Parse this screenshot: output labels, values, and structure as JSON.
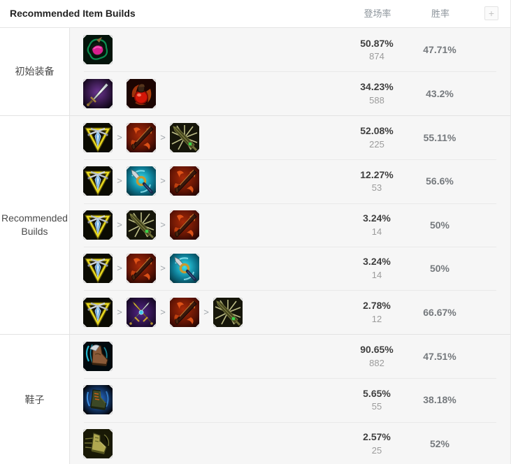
{
  "header": {
    "title": "Recommended Item Builds",
    "col_pick": "登场率",
    "col_win": "胜率",
    "add_button": "+"
  },
  "ui": {
    "arrow_glyph": ">"
  },
  "colors": {
    "header_text": "#222222",
    "column_header": "#8d959c",
    "pick_value": "#3f3f3f",
    "pick_count": "#9b9b9b",
    "win_value": "#75797d",
    "row_background": "#f6f6f6",
    "divider": "#e9e9e9"
  },
  "sections": [
    {
      "label": "初始装备",
      "rows": [
        {
          "items": [
            "emerald-seedling"
          ],
          "arrows": false,
          "pick": "50.87%",
          "count": "874",
          "win": "47.71%"
        },
        {
          "items": [
            "long-sword",
            "health-potion"
          ],
          "arrows": false,
          "pick": "34.23%",
          "count": "588",
          "win": "43.2%"
        }
      ]
    },
    {
      "label": "Recommended Builds",
      "rows": [
        {
          "items": [
            "gold-triangle",
            "flame-blade",
            "spiked-blade"
          ],
          "arrows": true,
          "pick": "52.08%",
          "count": "225",
          "win": "55.11%"
        },
        {
          "items": [
            "gold-triangle",
            "frost-hilt",
            "flame-blade"
          ],
          "arrows": true,
          "pick": "12.27%",
          "count": "53",
          "win": "56.6%"
        },
        {
          "items": [
            "gold-triangle",
            "spiked-blade",
            "flame-blade"
          ],
          "arrows": true,
          "pick": "3.24%",
          "count": "14",
          "win": "50%"
        },
        {
          "items": [
            "gold-triangle",
            "flame-blade",
            "frost-hilt"
          ],
          "arrows": true,
          "pick": "3.24%",
          "count": "14",
          "win": "50%"
        },
        {
          "items": [
            "gold-triangle",
            "purple-swords",
            "flame-blade",
            "spiked-blade"
          ],
          "arrows": true,
          "pick": "2.78%",
          "count": "12",
          "win": "66.67%"
        }
      ]
    },
    {
      "label": "鞋子",
      "rows": [
        {
          "items": [
            "winged-boots"
          ],
          "arrows": false,
          "pick": "90.65%",
          "count": "882",
          "win": "47.51%"
        },
        {
          "items": [
            "plated-boots"
          ],
          "arrows": false,
          "pick": "5.65%",
          "count": "55",
          "win": "38.18%"
        },
        {
          "items": [
            "swift-boots"
          ],
          "arrows": false,
          "pick": "2.57%",
          "count": "25",
          "win": "52%"
        }
      ]
    }
  ]
}
